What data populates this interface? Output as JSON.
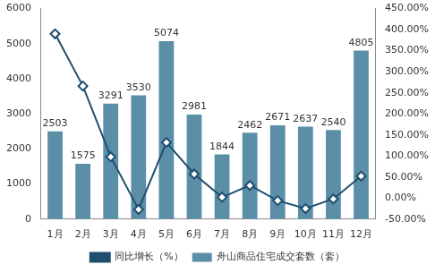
{
  "chart_data": {
    "type": "bar",
    "categories": [
      "1月",
      "2月",
      "3月",
      "4月",
      "5月",
      "6月",
      "7月",
      "8月",
      "9月",
      "10月",
      "11月",
      "12月"
    ],
    "series": [
      {
        "name": "舟山商品住宅成交套数（套）",
        "type": "bar",
        "color": "#5b8fa8",
        "data_labels": true,
        "values": [
          2503,
          1575,
          3291,
          3530,
          5074,
          2981,
          1844,
          2462,
          2671,
          2637,
          2540,
          4805
        ]
      },
      {
        "name": "同比增长（%）",
        "type": "line",
        "axis": "y2",
        "color": "#1f4e6e",
        "marker": "diamond",
        "line_style": "solid",
        "values": [
          390,
          266,
          98,
          -27,
          132,
          57,
          2,
          30,
          -6,
          -25,
          -2,
          52
        ]
      }
    ],
    "ylim": [
      0,
      6000
    ],
    "yticks": [
      0,
      1000,
      2000,
      3000,
      4000,
      5000,
      6000
    ],
    "y2lim": [
      -50,
      450
    ],
    "y2ticks": [
      {
        "value": -50,
        "label": "-50.00%"
      },
      {
        "value": 0,
        "label": "0.00%"
      },
      {
        "value": 50,
        "label": "50.00%"
      },
      {
        "value": 100,
        "label": "100.00%"
      },
      {
        "value": 150,
        "label": "150.00%"
      },
      {
        "value": 200,
        "label": "200.00%"
      },
      {
        "value": 250,
        "label": "250.00%"
      },
      {
        "value": 300,
        "label": "300.00%"
      },
      {
        "value": 350,
        "label": "350.00%"
      },
      {
        "value": 400,
        "label": "400.00%"
      },
      {
        "value": 450,
        "label": "450.00%"
      }
    ],
    "grid": false,
    "legend": "bottom"
  }
}
